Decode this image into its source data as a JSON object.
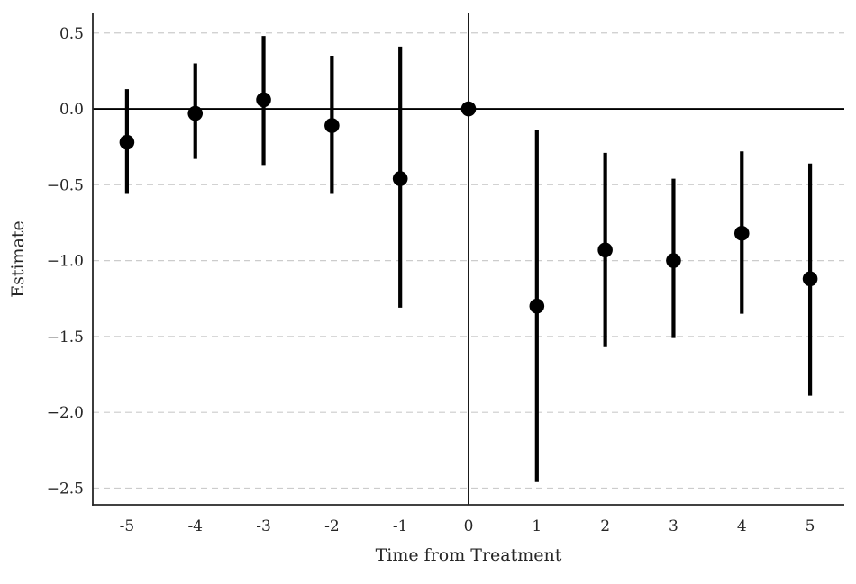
{
  "chart_data": {
    "type": "scatter",
    "subtype": "event-study-errorbar",
    "title": "",
    "xlabel": "Time from Treatment",
    "ylabel": "Estimate",
    "x": [
      -5,
      -4,
      -3,
      -2,
      -1,
      0,
      1,
      2,
      3,
      4,
      5
    ],
    "series": [
      {
        "name": "estimate",
        "values": [
          -0.22,
          -0.03,
          0.06,
          -0.11,
          -0.46,
          0.0,
          -1.3,
          -0.93,
          -1.0,
          -0.82,
          -1.12
        ],
        "ci_low": [
          -0.56,
          -0.33,
          -0.37,
          -0.56,
          -1.31,
          0.0,
          -2.46,
          -1.57,
          -1.51,
          -1.35,
          -1.89
        ],
        "ci_high": [
          0.13,
          0.3,
          0.48,
          0.35,
          0.41,
          0.0,
          -0.14,
          -0.29,
          -0.46,
          -0.28,
          -0.36
        ]
      }
    ],
    "x_tick_labels": [
      "-5",
      "-4",
      "-3",
      "-2",
      "-1",
      "0",
      "1",
      "2",
      "3",
      "4",
      "5"
    ],
    "x_tick_values": [
      -5,
      -4,
      -3,
      -2,
      -1,
      0,
      1,
      2,
      3,
      4,
      5
    ],
    "y_tick_labels": [
      "0.5",
      "0.0",
      "−0.5",
      "−1.0",
      "−1.5",
      "−2.0",
      "−2.5"
    ],
    "y_tick_values": [
      0.5,
      0.0,
      -0.5,
      -1.0,
      -1.5,
      -2.0,
      -2.5
    ],
    "xlim": [
      -5.5,
      5.5
    ],
    "ylim": [
      -2.61,
      0.635
    ],
    "grid": "horizontal-dashed",
    "legend": "none",
    "reference_lines": {
      "horizontal_at": 0,
      "vertical_at": 0
    },
    "colors": {
      "marker": "#000000",
      "errorbar": "#000000",
      "reference_line": "#000000",
      "grid": "#cccccc",
      "spine": "#262626",
      "text": "#262626",
      "background": "#ffffff"
    }
  }
}
